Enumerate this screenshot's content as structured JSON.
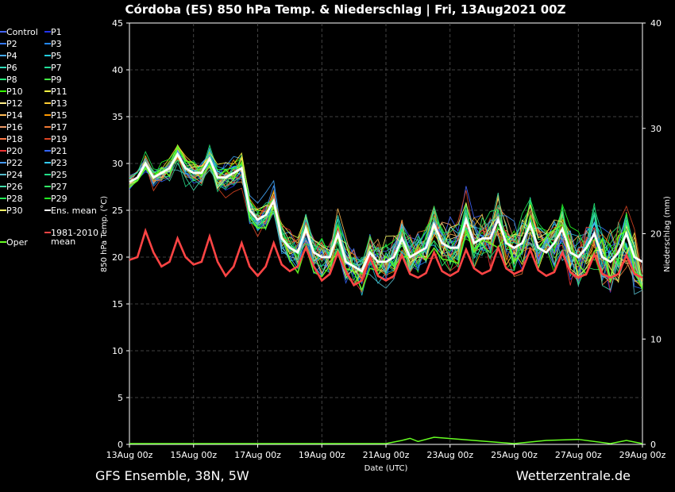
{
  "chart_data": {
    "type": "line",
    "title": "Córdoba  (ES)  850 hPa Temp. & Niederschlag | Fri, 13Aug2021 00Z",
    "ylabel": "850 hPa Temp. (°C)",
    "ylabel_right": "Niederschlag (mm)",
    "xlabel": "Date (UTC)",
    "ylim": [
      0,
      45
    ],
    "ylim_right": [
      0,
      40
    ],
    "yticks": [
      "0",
      "5",
      "10",
      "15",
      "20",
      "25",
      "30",
      "35",
      "40",
      "45"
    ],
    "yticks_right": [
      "0",
      "10",
      "20",
      "30",
      "40"
    ],
    "xticks": [
      "13Aug 00z",
      "15Aug 00z",
      "17Aug 00z",
      "19Aug 00z",
      "21Aug 00z",
      "23Aug 00z",
      "25Aug 00z",
      "27Aug 00z",
      "29Aug 00z"
    ],
    "x_range_days": [
      0,
      16
    ],
    "grid": true,
    "legend_position": "left",
    "legend": [
      {
        "name": "Control",
        "color": "#4466ff"
      },
      {
        "name": "P1",
        "color": "#2233ee"
      },
      {
        "name": "P2",
        "color": "#3377ff"
      },
      {
        "name": "P3",
        "color": "#2288ff"
      },
      {
        "name": "P4",
        "color": "#44aaff"
      },
      {
        "name": "P5",
        "color": "#22ccdd"
      },
      {
        "name": "P6",
        "color": "#33ddbb"
      },
      {
        "name": "P7",
        "color": "#22dd99"
      },
      {
        "name": "P8",
        "color": "#22ee77"
      },
      {
        "name": "P9",
        "color": "#44ee44"
      },
      {
        "name": "P10",
        "color": "#33ff00"
      },
      {
        "name": "P11",
        "color": "#ffff44"
      },
      {
        "name": "P12",
        "color": "#ffee88"
      },
      {
        "name": "P13",
        "color": "#ffcc33"
      },
      {
        "name": "P14",
        "color": "#ffbb55"
      },
      {
        "name": "P15",
        "color": "#ff9900"
      },
      {
        "name": "P16",
        "color": "#ee9966"
      },
      {
        "name": "P17",
        "color": "#ee7733"
      },
      {
        "name": "P18",
        "color": "#ff7744"
      },
      {
        "name": "P19",
        "color": "#dd4422"
      },
      {
        "name": "P20",
        "color": "#ee3333"
      },
      {
        "name": "P21",
        "color": "#3366ff"
      },
      {
        "name": "P22",
        "color": "#4499ff"
      },
      {
        "name": "P23",
        "color": "#33ccff"
      },
      {
        "name": "P24",
        "color": "#55bbcc"
      },
      {
        "name": "P25",
        "color": "#22dd88"
      },
      {
        "name": "P26",
        "color": "#44ddaa"
      },
      {
        "name": "P27",
        "color": "#33ee66"
      },
      {
        "name": "P28",
        "color": "#22ee55"
      },
      {
        "name": "P29",
        "color": "#22ff22"
      },
      {
        "name": "P30",
        "color": "#ffff66"
      },
      {
        "name": "Ens. mean",
        "color": "#ffffff"
      },
      {
        "name": "Oper",
        "color": "#66ff22"
      },
      {
        "name": "1981-2010 mean",
        "color": "#ff4444"
      }
    ],
    "series": {
      "ens_mean": {
        "x": [
          0,
          0.25,
          0.5,
          0.75,
          1,
          1.25,
          1.5,
          1.75,
          2,
          2.25,
          2.5,
          2.75,
          3,
          3.25,
          3.5,
          3.75,
          4,
          4.25,
          4.5,
          4.75,
          5,
          5.25,
          5.5,
          5.75,
          6,
          6.25,
          6.5,
          6.75,
          7,
          7.25,
          7.5,
          7.75,
          8,
          8.25,
          8.5,
          8.75,
          9,
          9.25,
          9.5,
          9.75,
          10,
          10.25,
          10.5,
          10.75,
          11,
          11.25,
          11.5,
          11.75,
          12,
          12.25,
          12.5,
          12.75,
          13,
          13.25,
          13.5,
          13.75,
          14,
          14.25,
          14.5,
          14.75,
          15,
          15.25,
          15.5,
          15.75,
          16
        ],
        "values": [
          28,
          28.5,
          30,
          28.5,
          29,
          29.5,
          31,
          29.5,
          29,
          29,
          30.5,
          28.5,
          28.5,
          29,
          29.5,
          25,
          24,
          24.5,
          26,
          22,
          21,
          20.5,
          23,
          20.5,
          20,
          20,
          22.5,
          19.5,
          19,
          18.5,
          20.5,
          19.5,
          19.5,
          20,
          22,
          20,
          20.5,
          21,
          23.5,
          21.5,
          21,
          21,
          24,
          21.5,
          22,
          22,
          24,
          21.5,
          21,
          21.5,
          23.5,
          21,
          20.5,
          21.5,
          23,
          20.5,
          20,
          21,
          22.5,
          20,
          19.5,
          20.5,
          22.5,
          20,
          19.5
        ]
      },
      "clim_mean": {
        "x": [
          0,
          0.25,
          0.5,
          0.75,
          1,
          1.25,
          1.5,
          1.75,
          2,
          2.25,
          2.5,
          2.75,
          3,
          3.25,
          3.5,
          3.75,
          4,
          4.25,
          4.5,
          4.75,
          5,
          5.25,
          5.5,
          5.75,
          6,
          6.25,
          6.5,
          6.75,
          7,
          7.25,
          7.5,
          7.75,
          8,
          8.25,
          8.5,
          8.75,
          9,
          9.25,
          9.5,
          9.75,
          10,
          10.25,
          10.5,
          10.75,
          11,
          11.25,
          11.5,
          11.75,
          12,
          12.25,
          12.5,
          12.75,
          13,
          13.25,
          13.5,
          13.75,
          14,
          14.25,
          14.5,
          14.75,
          15,
          15.25,
          15.5,
          15.75,
          16
        ],
        "values": [
          19.7,
          20,
          22.8,
          20.5,
          19,
          19.5,
          22,
          20,
          19.2,
          19.5,
          22.2,
          19.5,
          18,
          19,
          21.5,
          19,
          18,
          19,
          21.5,
          19.2,
          18.5,
          19,
          21,
          19,
          17.5,
          18.2,
          20.5,
          18.5,
          17,
          17.5,
          20,
          18,
          17.5,
          18,
          20.2,
          18.2,
          17.8,
          18.3,
          20.5,
          18.5,
          18,
          18.5,
          20.8,
          18.8,
          18.2,
          18.6,
          21,
          18.8,
          18.2,
          18.6,
          20.8,
          18.6,
          18,
          18.4,
          20.5,
          18.4,
          17.8,
          18.2,
          20.3,
          18.2,
          17.8,
          18.2,
          20.2,
          18.2,
          17.8
        ]
      },
      "precip": {
        "x": [
          0,
          4,
          8,
          8.5,
          8.75,
          9,
          9.5,
          12,
          13,
          14,
          15,
          15.5,
          16
        ],
        "values": [
          0,
          0,
          0,
          0.3,
          0.5,
          0.2,
          0.6,
          0,
          0.3,
          0.4,
          0,
          0.3,
          0
        ]
      }
    }
  },
  "footer": {
    "left": "GFS Ensemble, 38N, 5W",
    "right": "Wetterzentrale.de"
  }
}
